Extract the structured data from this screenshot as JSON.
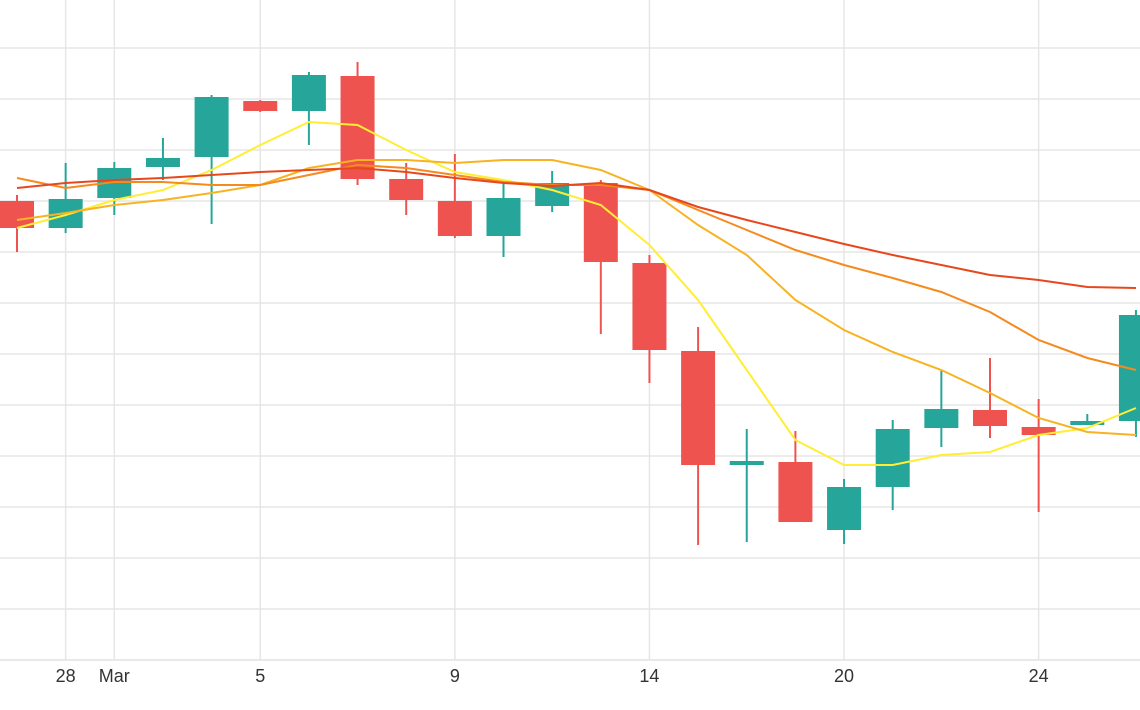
{
  "chart_data": {
    "type": "candlestick",
    "categories": [
      null,
      "28",
      "Mar",
      null,
      null,
      "5",
      null,
      null,
      null,
      "9",
      null,
      null,
      null,
      "14",
      null,
      null,
      null,
      "20",
      null,
      null,
      null,
      "24",
      null,
      null
    ],
    "open": [
      459,
      432,
      462,
      493,
      503,
      559,
      549,
      584,
      481,
      459,
      424,
      454,
      477,
      397,
      309,
      195,
      198,
      130,
      173,
      232,
      250,
      233,
      235,
      239
    ],
    "high": [
      465,
      497,
      498,
      522,
      565,
      560,
      588,
      598,
      497,
      506,
      476,
      489,
      480,
      405,
      333,
      231,
      229,
      181,
      240,
      289,
      302,
      261,
      246,
      350
    ],
    "low": [
      408,
      427,
      445,
      480,
      436,
      548,
      515,
      475,
      445,
      422,
      403,
      448,
      326,
      277,
      115,
      118,
      138,
      116,
      150,
      213,
      222,
      148,
      235,
      223
    ],
    "close": [
      432,
      461,
      492,
      502,
      563,
      549,
      585,
      481,
      460,
      424,
      462,
      477,
      398,
      310,
      195,
      199,
      138,
      173,
      231,
      251,
      234,
      225,
      239,
      345
    ],
    "up_color": "#26a69a",
    "down_color": "#ef5350",
    "series": [
      {
        "color": "#ffee33",
        "values": [
          432,
          445,
          460,
          470,
          490,
          515,
          538,
          535,
          510,
          488,
          480,
          470,
          455,
          415,
          360,
          290,
          220,
          195,
          195,
          205,
          208,
          225,
          232,
          252
        ]
      },
      {
        "color": "#f7b321",
        "values": [
          440,
          447,
          455,
          460,
          467,
          475,
          492,
          500,
          500,
          497,
          500,
          500,
          490,
          470,
          435,
          405,
          360,
          330,
          308,
          290,
          267,
          242,
          228,
          225
        ]
      },
      {
        "color": "#f58a1f",
        "values": [
          482,
          472,
          478,
          478,
          475,
          475,
          485,
          495,
          492,
          485,
          478,
          475,
          475,
          470,
          450,
          430,
          410,
          395,
          382,
          368,
          348,
          320,
          302,
          290
        ]
      },
      {
        "color": "#e8471c",
        "values": [
          472,
          477,
          480,
          482,
          485,
          488,
          490,
          492,
          488,
          482,
          477,
          474,
          477,
          470,
          453,
          440,
          428,
          416,
          405,
          395,
          385,
          380,
          373,
          372
        ]
      }
    ],
    "ylim": [
      0,
      660
    ],
    "yticks": [
      0,
      51,
      102,
      153,
      204,
      255,
      306,
      357,
      408,
      459,
      510,
      561,
      612
    ],
    "grid": true
  }
}
